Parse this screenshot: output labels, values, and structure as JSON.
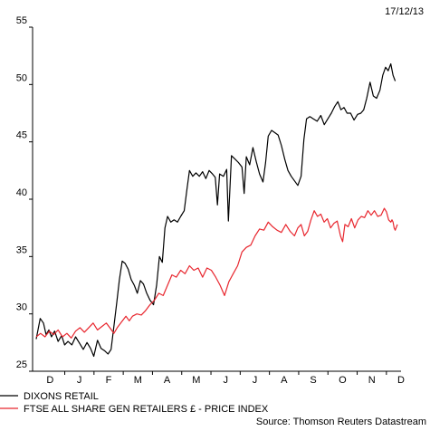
{
  "chart_data": {
    "type": "line",
    "date": "17/12/13",
    "source": "Source: Thomson Reuters Datastream",
    "ylim": [
      25,
      55
    ],
    "y_ticks": [
      25,
      30,
      35,
      40,
      45,
      50,
      55
    ],
    "x_ticks": [
      "D",
      "J",
      "F",
      "M",
      "A",
      "M",
      "J",
      "J",
      "A",
      "S",
      "O",
      "N",
      "D"
    ],
    "grid": false,
    "legend_position": "bottom-left",
    "series": [
      {
        "name": "DIXONS RETAIL",
        "color": "#000000",
        "values": [
          27.8,
          29.6,
          29.2,
          28.2,
          28.6,
          28.0,
          28.5,
          27.6,
          28.1,
          27.3,
          27.6,
          27.3,
          28.0,
          27.5,
          26.9,
          27.5,
          27.0,
          26.3,
          27.7,
          27.0,
          26.8,
          26.5,
          26.9,
          28.9,
          31.0,
          33.0,
          34.6,
          34.4,
          33.9,
          33.0,
          32.5,
          31.8,
          32.9,
          32.6,
          31.8,
          31.2,
          30.8,
          32.5,
          35.0,
          34.5,
          37.5,
          38.5,
          38.0,
          38.2,
          38.0,
          38.5,
          39.0,
          40.8,
          42.5,
          42.0,
          42.3,
          42.0,
          42.4,
          41.8,
          42.5,
          42.2,
          41.9,
          39.5,
          42.2,
          42.0,
          42.6,
          38.1,
          43.8,
          43.5,
          43.2,
          42.8,
          40.5,
          43.7,
          43.0,
          44.5,
          43.3,
          42.2,
          41.5,
          43.2,
          45.5,
          46.0,
          45.8,
          45.6,
          44.7,
          43.5,
          42.5,
          42.0,
          41.6,
          41.2,
          42.0,
          45.2,
          47.0,
          47.2,
          47.0,
          46.8,
          47.3,
          46.5,
          47.0,
          47.5,
          48.1,
          48.5,
          47.8,
          48.0,
          47.5,
          47.5,
          46.9,
          47.4,
          47.5,
          47.8,
          48.8,
          50.2,
          49.0,
          48.8,
          49.5,
          50.8,
          51.5,
          51.2,
          51.8,
          50.8,
          50.3
        ],
        "x": [
          0.0,
          1.8,
          3.3,
          4.5,
          5.8,
          7.0,
          8.4,
          10.0,
          11.6,
          13.0,
          14.5,
          16.3,
          18.0,
          19.6,
          21.5,
          23.2,
          24.8,
          26.3,
          28.0,
          29.6,
          31.2,
          32.8,
          34.2,
          35.5,
          36.8,
          38.0,
          39.3,
          40.6,
          42.0,
          43.4,
          44.8,
          46.2,
          47.6,
          49.0,
          50.5,
          52.0,
          53.6,
          55.0,
          56.3,
          57.6,
          58.8,
          60.0,
          61.5,
          63.0,
          64.5,
          66.0,
          67.6,
          68.8,
          70.0,
          71.5,
          73.0,
          74.5,
          76.0,
          77.5,
          79.0,
          80.5,
          81.8,
          82.8,
          83.8,
          85.5,
          87.0,
          87.8,
          89.2,
          90.8,
          92.4,
          94.0,
          95.0,
          96.0,
          97.5,
          99.0,
          100.5,
          102.0,
          103.6,
          104.8,
          106.0,
          107.5,
          109.0,
          110.5,
          112.0,
          113.5,
          115.0,
          116.5,
          118.0,
          119.5,
          121.0,
          122.3,
          123.5,
          125.0,
          126.6,
          128.3,
          130.0,
          131.6,
          133.2,
          134.8,
          136.4,
          137.8,
          139.2,
          140.6,
          142.0,
          143.6,
          145.2,
          146.8,
          148.3,
          149.6,
          151.0,
          152.5,
          154.0,
          155.5,
          157.0,
          158.3,
          159.6,
          160.8,
          162.0,
          163.0,
          164.0
        ]
      },
      {
        "name": "FTSE ALL SHARE GEN RETAILERS £ - PRICE INDEX",
        "color": "#e8262e",
        "values": [
          28.0,
          28.3,
          28.0,
          28.5,
          28.2,
          28.6,
          28.0,
          28.3,
          27.9,
          28.5,
          28.8,
          28.4,
          28.8,
          29.2,
          28.6,
          28.9,
          29.2,
          28.7,
          28.3,
          28.8,
          29.3,
          29.8,
          29.4,
          29.8,
          30.0,
          29.9,
          30.3,
          30.8,
          31.2,
          31.8,
          31.6,
          32.5,
          33.4,
          33.2,
          33.8,
          33.5,
          34.2,
          33.8,
          34.0,
          33.2,
          34.0,
          33.8,
          33.2,
          32.5,
          31.6,
          32.8,
          33.5,
          34.2,
          35.4,
          35.8,
          36.0,
          36.8,
          37.4,
          37.3,
          38.0,
          37.6,
          37.3,
          37.1,
          37.8,
          37.2,
          36.8,
          37.5,
          37.8,
          36.8,
          37.2,
          38.2,
          39.0,
          38.5,
          38.7,
          38.0,
          38.3,
          37.5,
          37.9,
          38.1,
          36.8,
          36.3,
          37.8,
          37.6,
          38.3,
          37.5,
          38.2,
          38.5,
          38.4,
          39.0,
          38.6,
          39.0,
          38.5,
          38.6,
          39.2,
          38.9,
          38.2,
          38.0,
          38.2,
          38.0,
          37.5,
          37.3,
          37.8
        ],
        "x": [
          0.0,
          2.0,
          4.0,
          6.0,
          8.0,
          10.0,
          12.0,
          14.0,
          16.0,
          18.0,
          20.0,
          22.0,
          24.0,
          26.0,
          28.0,
          30.0,
          32.0,
          34.0,
          35.5,
          37.0,
          39.0,
          41.0,
          42.5,
          44.0,
          46.0,
          48.0,
          50.0,
          52.0,
          54.0,
          56.0,
          58.0,
          60.0,
          62.0,
          64.0,
          66.0,
          68.0,
          70.0,
          72.0,
          74.0,
          76.0,
          78.0,
          80.0,
          82.0,
          84.0,
          86.0,
          88.0,
          90.0,
          92.0,
          94.0,
          96.0,
          98.0,
          100.0,
          102.0,
          104.0,
          106.0,
          108.0,
          110.0,
          112.0,
          114.0,
          116.0,
          118.0,
          119.5,
          121.0,
          122.5,
          124.0,
          125.5,
          127.0,
          128.5,
          130.0,
          131.5,
          133.0,
          134.5,
          136.0,
          137.5,
          139.0,
          140.0,
          141.0,
          142.5,
          144.0,
          145.5,
          147.0,
          148.5,
          150.0,
          151.5,
          153.0,
          154.5,
          156.0,
          157.5,
          159.0,
          160.0,
          161.0,
          162.0,
          162.5,
          163.0,
          163.5,
          164.0,
          165.0
        ]
      }
    ]
  }
}
